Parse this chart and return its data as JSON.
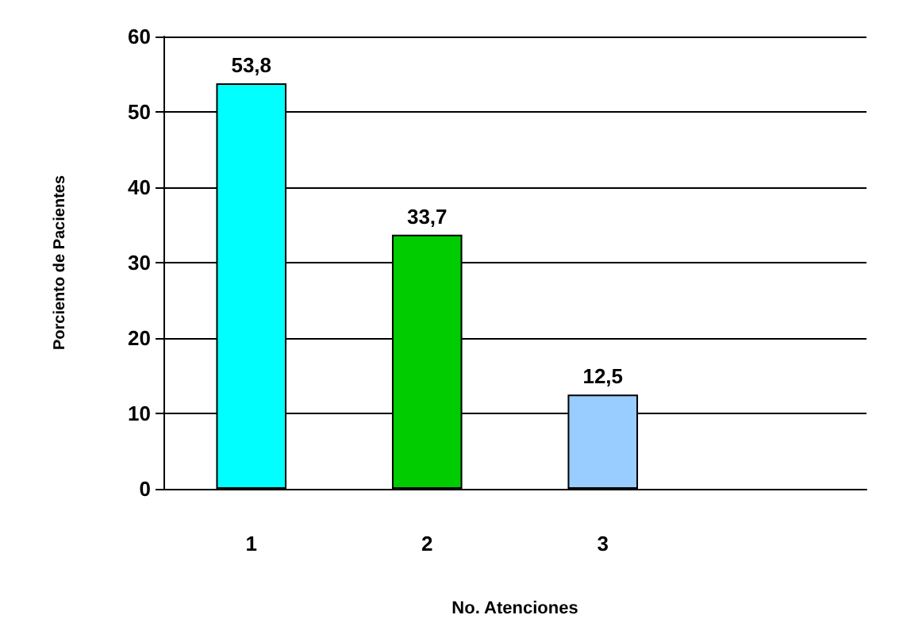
{
  "chart_data": {
    "type": "bar",
    "xlabel": "No. Atenciones",
    "ylabel": "Porciento de Pacientes",
    "categories": [
      "1",
      "2",
      "3",
      null
    ],
    "values": [
      53.8,
      33.7,
      12.5,
      null
    ],
    "colors": [
      "#00ffff",
      "#00cc00",
      "#99ccff",
      "#cccccc"
    ],
    "value_labels": [
      "53,8",
      "33,7",
      "12,5",
      null
    ],
    "ylim": [
      0,
      60
    ],
    "yticks": [
      0,
      10,
      20,
      30,
      40,
      50,
      60
    ],
    "grid": "y"
  }
}
